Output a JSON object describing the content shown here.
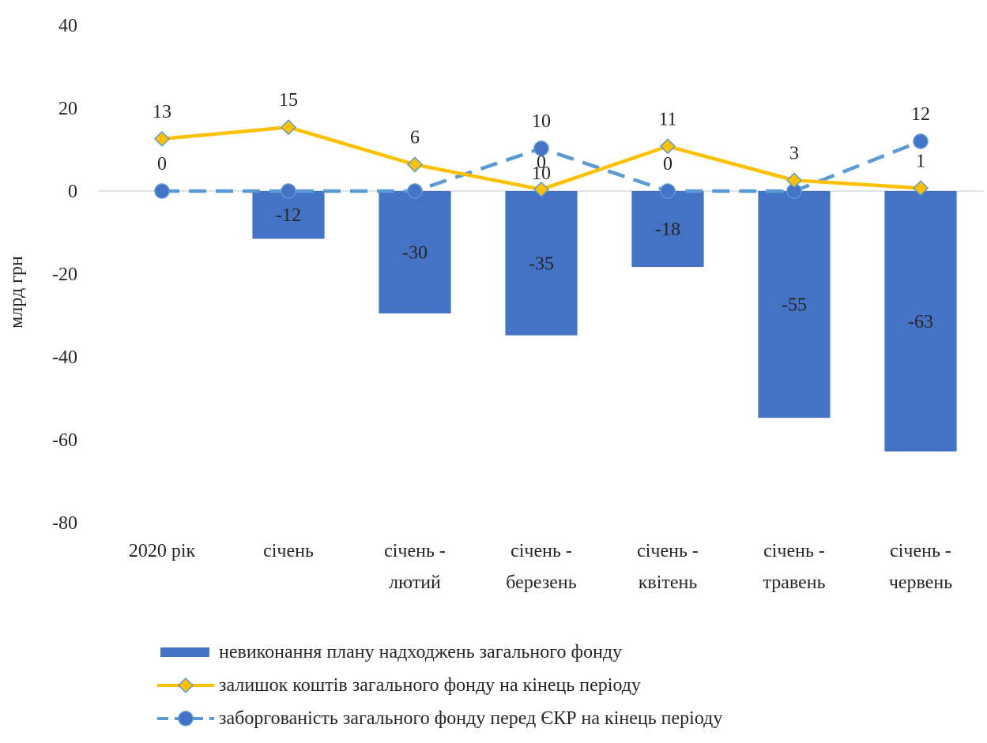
{
  "chart_data": {
    "type": "bar",
    "title": "",
    "xlabel": "",
    "ylabel": "млрд грн",
    "ylim": [
      -80,
      40
    ],
    "yticks": [
      40,
      20,
      0,
      -20,
      -40,
      -60,
      -80
    ],
    "categories": [
      [
        "2020 рік"
      ],
      [
        "січень"
      ],
      [
        "січень -",
        "лютий"
      ],
      [
        "січень -",
        "березень"
      ],
      [
        "січень -",
        "квітень"
      ],
      [
        "січень -",
        "травень"
      ],
      [
        "січень -",
        "червень"
      ]
    ],
    "series": [
      {
        "name": "невиконання плану надходжень загального фонду",
        "type": "bar",
        "color": "#4472C4",
        "values": [
          null,
          -11.5,
          -29.5,
          -34.8,
          -18.3,
          -54.7,
          -62.8
        ],
        "labels": [
          "",
          "-12",
          "-30",
          "-35",
          "-18",
          "-55",
          "-63"
        ]
      },
      {
        "name": "залишок коштів загального фонду на кінець періоду",
        "type": "line",
        "color": "#FFC000",
        "marker": "diamond",
        "values": [
          12.6,
          15.4,
          6.4,
          0.4,
          10.8,
          2.6,
          0.7
        ],
        "labels": [
          "13",
          "15",
          "6",
          "0",
          "11",
          "3",
          "1"
        ]
      },
      {
        "name": "заборгованість загального фонду перед ЄКР на кінець періоду",
        "type": "line",
        "color": "#5B9BD5",
        "marker": "circle",
        "dashed": true,
        "values": [
          0,
          0,
          0,
          10.3,
          0,
          0,
          12.0
        ],
        "labels": [
          "0",
          "",
          "",
          "10",
          "0",
          "",
          "12"
        ]
      }
    ],
    "legend_position": "bottom"
  }
}
